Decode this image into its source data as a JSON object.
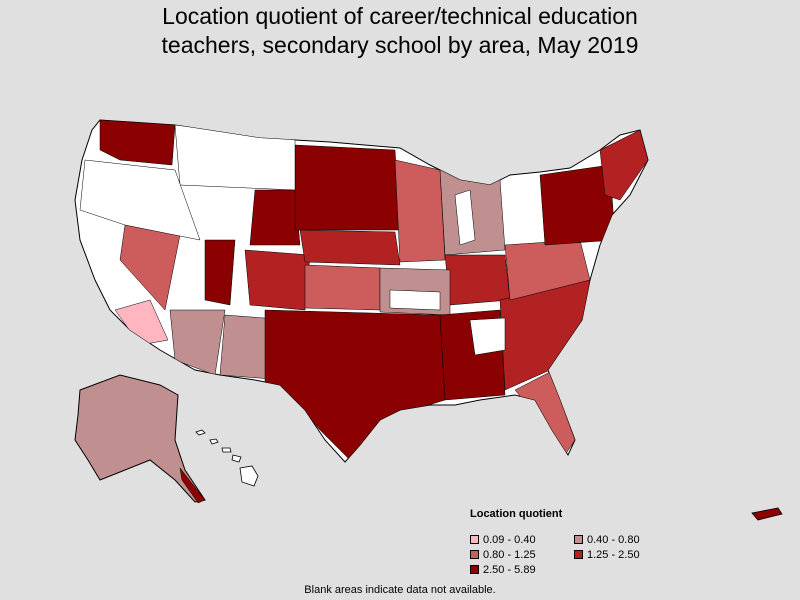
{
  "title": {
    "line1": "Location quotient of career/technical education",
    "line2": "teachers, secondary school by area, May 2019"
  },
  "legend": {
    "title": "Location quotient",
    "items": [
      {
        "label": "0.09 - 0.40",
        "color": "#ffb6c1"
      },
      {
        "label": "0.40 - 0.80",
        "color": "#c09090"
      },
      {
        "label": "0.80 - 1.25",
        "color": "#cd5c5c"
      },
      {
        "label": "1.25 - 2.50",
        "color": "#b22222"
      },
      {
        "label": "2.50 - 5.89",
        "color": "#8b0000"
      }
    ]
  },
  "footnote": "Blank areas indicate data not available.",
  "colors": {
    "background": "#e0e0e0",
    "no_data": "#ffffff",
    "outline": "#000000"
  }
}
